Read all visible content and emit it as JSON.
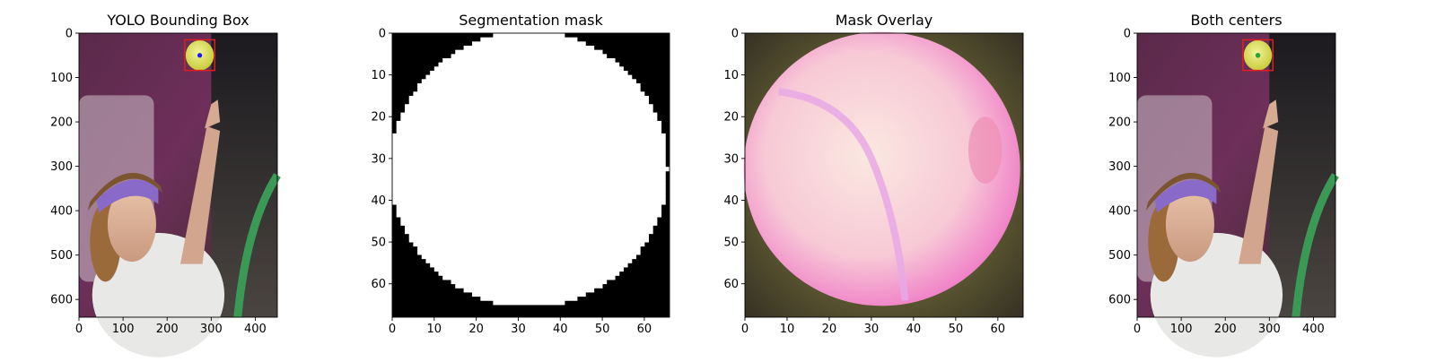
{
  "chart_data": [
    {
      "type": "image",
      "title": "YOLO Bounding Box",
      "xlim": [
        0,
        450
      ],
      "ylim": [
        640,
        0
      ],
      "xticks": [
        0,
        100,
        200,
        300,
        400
      ],
      "yticks": [
        0,
        100,
        200,
        300,
        400,
        500,
        600
      ],
      "bounding_box": {
        "x0": 240,
        "y0": 15,
        "x1": 308,
        "y1": 84,
        "color": "#e02020"
      },
      "center_points": [
        {
          "x": 274,
          "y": 50,
          "color": "#1a1aff"
        }
      ]
    },
    {
      "type": "image",
      "title": "Segmentation mask",
      "xlim": [
        0,
        66
      ],
      "ylim": [
        68,
        0
      ],
      "xticks": [
        0,
        10,
        20,
        30,
        40,
        50,
        60
      ],
      "yticks": [
        0,
        10,
        20,
        30,
        40,
        50,
        60
      ],
      "mask_colors": {
        "background": "#000000",
        "foreground": "#ffffff"
      }
    },
    {
      "type": "image",
      "title": "Mask Overlay",
      "xlim": [
        0,
        66
      ],
      "ylim": [
        68,
        0
      ],
      "xticks": [
        0,
        10,
        20,
        30,
        40,
        50,
        60
      ],
      "yticks": [
        0,
        10,
        20,
        30,
        40,
        50,
        60
      ],
      "overlay_colors": {
        "ball": "#f7d0d8",
        "tint": "#ee6fc4",
        "background": "#2f2a22"
      }
    },
    {
      "type": "image",
      "title": "Both centers",
      "xlim": [
        0,
        450
      ],
      "ylim": [
        640,
        0
      ],
      "xticks": [
        0,
        100,
        200,
        300,
        400
      ],
      "yticks": [
        0,
        100,
        200,
        300,
        400,
        500,
        600
      ],
      "bounding_box": {
        "x0": 240,
        "y0": 15,
        "x1": 308,
        "y1": 84,
        "color": "#e02020"
      },
      "center_points": [
        {
          "x": 274,
          "y": 50,
          "color": "#1a1aff"
        },
        {
          "x": 274,
          "y": 50,
          "color": "#22aa33"
        }
      ]
    }
  ]
}
